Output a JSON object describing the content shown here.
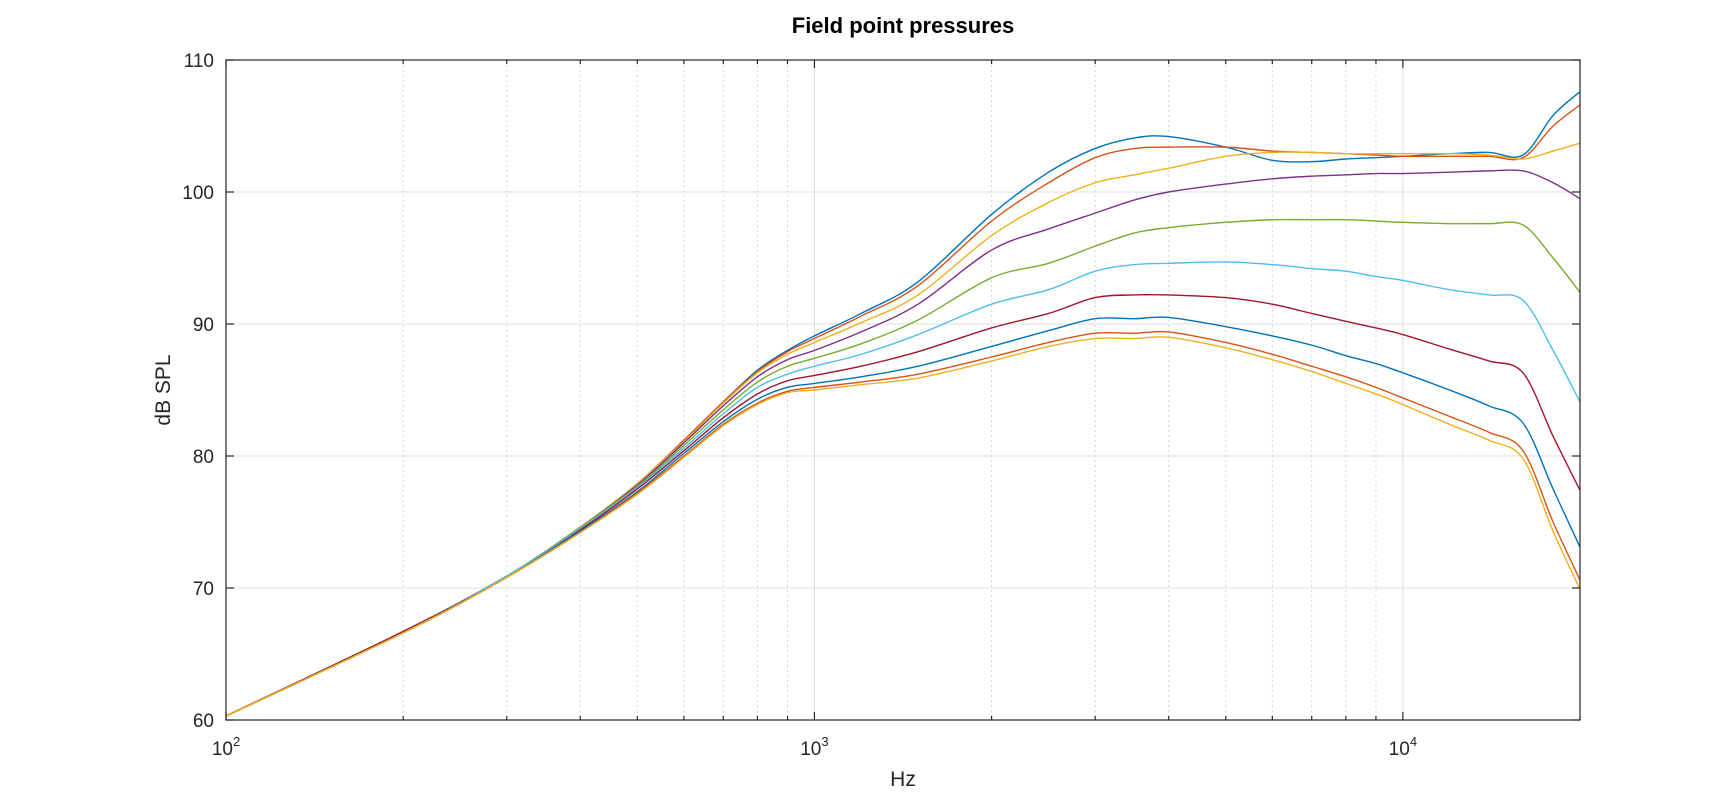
{
  "chart_data": {
    "type": "line",
    "title": "Field point pressures",
    "xlabel": "Hz",
    "ylabel": "dB SPL",
    "xscale": "log",
    "xlim": [
      100,
      20000
    ],
    "ylim": [
      60,
      110
    ],
    "grid": true,
    "x_ticks": [
      {
        "base": "10",
        "exp": "2",
        "value": 100
      },
      {
        "base": "10",
        "exp": "3",
        "value": 1000
      },
      {
        "base": "10",
        "exp": "4",
        "value": 10000
      }
    ],
    "y_ticks": [
      {
        "label": "60",
        "value": 60
      },
      {
        "label": "70",
        "value": 70
      },
      {
        "label": "80",
        "value": 80
      },
      {
        "label": "90",
        "value": 90
      },
      {
        "label": "100",
        "value": 100
      },
      {
        "label": "110",
        "value": 110
      }
    ],
    "x": [
      100,
      200,
      300,
      400,
      500,
      600,
      700,
      800,
      900,
      1000,
      1200,
      1500,
      2000,
      2500,
      3000,
      3500,
      4000,
      5000,
      6000,
      7000,
      8000,
      9000,
      10000,
      12000,
      14000,
      16000,
      18000,
      20000
    ],
    "series": [
      {
        "color": "#0072bd",
        "values": [
          60.3,
          66.7,
          70.9,
          74.6,
          77.9,
          81.2,
          84.1,
          86.5,
          88.0,
          89.1,
          90.8,
          93.2,
          98.3,
          101.5,
          103.3,
          104.1,
          104.2,
          103.4,
          102.4,
          102.3,
          102.5,
          102.6,
          102.7,
          102.9,
          103.0,
          102.8,
          105.8,
          107.6
        ]
      },
      {
        "color": "#d95319",
        "values": [
          60.3,
          66.7,
          70.9,
          74.6,
          77.9,
          81.2,
          84.1,
          86.4,
          87.9,
          88.9,
          90.6,
          92.9,
          97.8,
          100.7,
          102.6,
          103.3,
          103.4,
          103.4,
          103.1,
          103.0,
          102.9,
          102.8,
          102.7,
          102.7,
          102.7,
          102.6,
          105.0,
          106.6
        ]
      },
      {
        "color": "#edb120",
        "values": [
          60.3,
          66.7,
          70.9,
          74.6,
          77.9,
          81.1,
          84.0,
          86.3,
          87.7,
          88.6,
          90.1,
          92.2,
          96.7,
          99.2,
          100.7,
          101.3,
          101.8,
          102.7,
          103.0,
          103.0,
          102.9,
          102.9,
          102.9,
          102.9,
          102.8,
          102.5,
          103.1,
          103.7
        ]
      },
      {
        "color": "#7e2f8e",
        "values": [
          60.3,
          66.7,
          70.9,
          74.6,
          77.8,
          81.0,
          83.8,
          86.0,
          87.3,
          88.0,
          89.4,
          91.5,
          95.6,
          97.2,
          98.4,
          99.4,
          100.0,
          100.6,
          101.0,
          101.2,
          101.3,
          101.4,
          101.4,
          101.5,
          101.6,
          101.6,
          100.7,
          99.5
        ]
      },
      {
        "color": "#77ac30",
        "values": [
          60.3,
          66.7,
          70.9,
          74.6,
          77.7,
          80.8,
          83.5,
          85.6,
          86.8,
          87.4,
          88.5,
          90.3,
          93.5,
          94.6,
          95.9,
          96.9,
          97.3,
          97.7,
          97.9,
          97.9,
          97.9,
          97.8,
          97.7,
          97.6,
          97.6,
          97.5,
          95.0,
          92.4
        ]
      },
      {
        "color": "#4dbeee",
        "values": [
          60.3,
          66.7,
          70.9,
          74.5,
          77.6,
          80.6,
          83.2,
          85.2,
          86.2,
          86.8,
          87.7,
          89.2,
          91.5,
          92.6,
          94.0,
          94.5,
          94.6,
          94.7,
          94.5,
          94.2,
          94.0,
          93.6,
          93.3,
          92.6,
          92.2,
          91.8,
          88.0,
          84.1
        ]
      },
      {
        "color": "#a2142f",
        "values": [
          60.3,
          66.7,
          70.8,
          74.4,
          77.5,
          80.4,
          82.9,
          84.7,
          85.7,
          86.1,
          86.8,
          87.9,
          89.7,
          90.8,
          92.0,
          92.2,
          92.2,
          92.0,
          91.5,
          90.8,
          90.2,
          89.7,
          89.2,
          88.1,
          87.2,
          86.3,
          81.5,
          77.4
        ]
      },
      {
        "color": "#0072bd",
        "values": [
          60.3,
          66.6,
          70.8,
          74.3,
          77.3,
          80.2,
          82.6,
          84.3,
          85.2,
          85.5,
          86.0,
          86.8,
          88.3,
          89.5,
          90.4,
          90.4,
          90.5,
          89.8,
          89.1,
          88.4,
          87.6,
          87.0,
          86.3,
          85.0,
          83.8,
          82.5,
          77.5,
          73.1
        ]
      },
      {
        "color": "#d95319",
        "values": [
          60.3,
          66.6,
          70.8,
          74.2,
          77.2,
          80.0,
          82.4,
          84.0,
          84.9,
          85.2,
          85.6,
          86.2,
          87.5,
          88.6,
          89.3,
          89.3,
          89.4,
          88.6,
          87.7,
          86.8,
          86.0,
          85.2,
          84.4,
          83.0,
          81.8,
          80.4,
          75.0,
          70.6
        ]
      },
      {
        "color": "#edb120",
        "values": [
          60.3,
          66.6,
          70.8,
          74.2,
          77.1,
          79.9,
          82.3,
          83.9,
          84.8,
          85.0,
          85.4,
          85.9,
          87.2,
          88.3,
          88.9,
          88.9,
          89.0,
          88.2,
          87.3,
          86.4,
          85.5,
          84.7,
          83.9,
          82.4,
          81.2,
          79.8,
          74.3,
          69.9
        ]
      }
    ]
  }
}
